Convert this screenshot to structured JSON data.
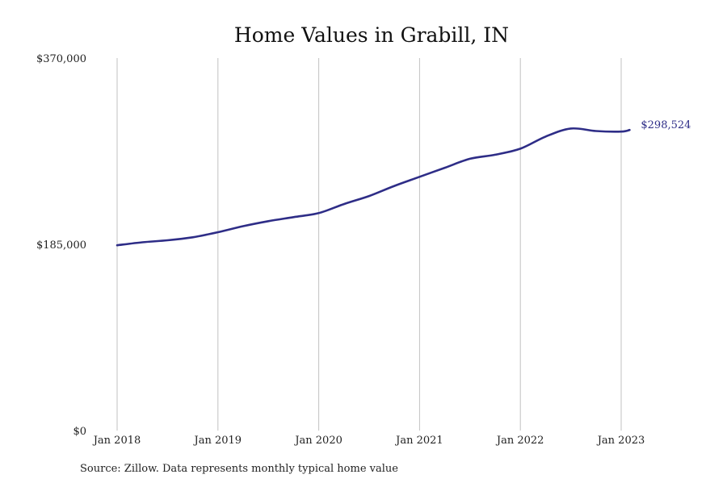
{
  "chart_data": {
    "type": "line",
    "title": "Home Values in Grabill, IN",
    "xlabel": "",
    "ylabel": "",
    "y_ticks": [
      "$0",
      "$185,000",
      "$370,000"
    ],
    "y_tick_values": [
      0,
      185000,
      370000
    ],
    "ylim": [
      0,
      370000
    ],
    "x_ticks": [
      "Jan 2018",
      "Jan 2019",
      "Jan 2020",
      "Jan 2021",
      "Jan 2022",
      "Jan 2023"
    ],
    "x_tick_values": [
      "2018-01",
      "2019-01",
      "2020-01",
      "2021-01",
      "2022-01",
      "2023-01"
    ],
    "xlim": [
      "2018-01",
      "2023-02"
    ],
    "grid": "vertical",
    "series": [
      {
        "color": "#2e2d87",
        "end_label": "$298,524",
        "points": [
          {
            "x": "2018-01",
            "y": 184000
          },
          {
            "x": "2018-04",
            "y": 187000
          },
          {
            "x": "2018-07",
            "y": 189000
          },
          {
            "x": "2018-10",
            "y": 192000
          },
          {
            "x": "2019-01",
            "y": 197000
          },
          {
            "x": "2019-04",
            "y": 203000
          },
          {
            "x": "2019-07",
            "y": 208000
          },
          {
            "x": "2019-10",
            "y": 212000
          },
          {
            "x": "2020-01",
            "y": 216000
          },
          {
            "x": "2020-04",
            "y": 225000
          },
          {
            "x": "2020-07",
            "y": 233000
          },
          {
            "x": "2020-10",
            "y": 243000
          },
          {
            "x": "2021-01",
            "y": 252000
          },
          {
            "x": "2021-04",
            "y": 261000
          },
          {
            "x": "2021-07",
            "y": 270000
          },
          {
            "x": "2021-10",
            "y": 274000
          },
          {
            "x": "2022-01",
            "y": 280000
          },
          {
            "x": "2022-04",
            "y": 292000
          },
          {
            "x": "2022-07",
            "y": 300000
          },
          {
            "x": "2022-10",
            "y": 297500
          },
          {
            "x": "2023-01",
            "y": 297000
          },
          {
            "x": "2023-02",
            "y": 298524
          }
        ]
      }
    ]
  },
  "footer": {
    "source": "Source: Zillow. Data represents monthly typical home value"
  }
}
